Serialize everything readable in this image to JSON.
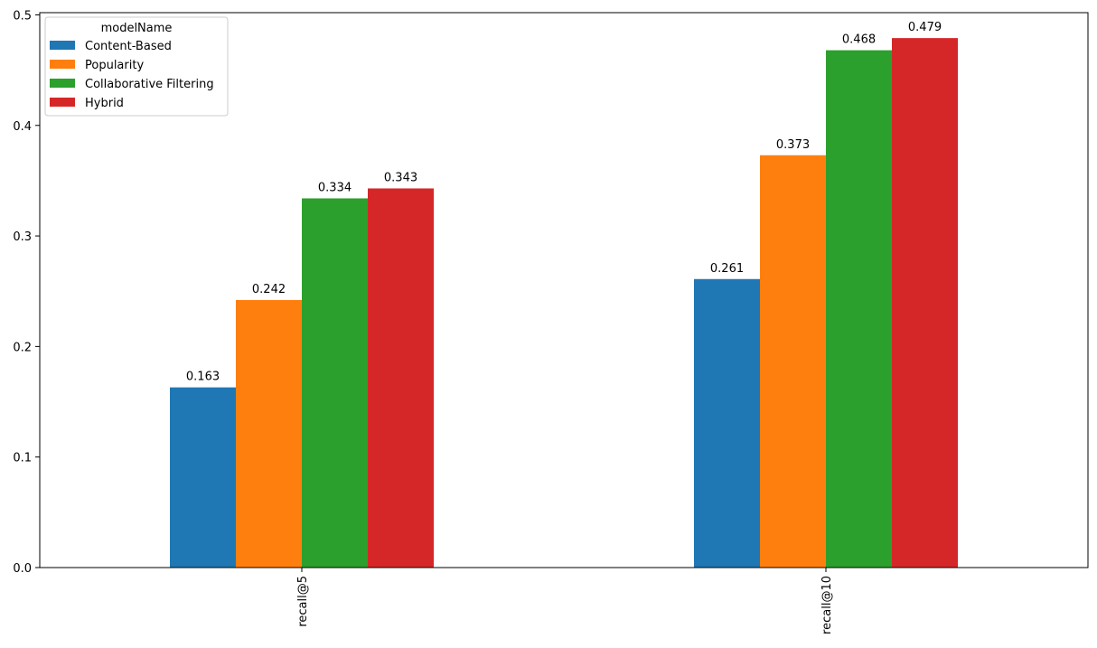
{
  "chart_data": {
    "type": "bar",
    "categories": [
      "recall@5",
      "recall@10"
    ],
    "series": [
      {
        "name": "Content-Based",
        "color": "#1f77b4",
        "values": [
          0.163,
          0.261
        ],
        "labels": [
          "0.163",
          "0.261"
        ]
      },
      {
        "name": "Popularity",
        "color": "#ff7f0e",
        "values": [
          0.242,
          0.373
        ],
        "labels": [
          "0.242",
          "0.373"
        ]
      },
      {
        "name": "Collaborative Filtering",
        "color": "#2ca02c",
        "values": [
          0.334,
          0.468
        ],
        "labels": [
          "0.334",
          "0.468"
        ]
      },
      {
        "name": "Hybrid",
        "color": "#d62728",
        "values": [
          0.343,
          0.479
        ],
        "labels": [
          "0.343",
          "0.479"
        ]
      }
    ],
    "ylim": [
      0,
      0.502
    ],
    "yticks": [
      0.0,
      0.1,
      0.2,
      0.3,
      0.4,
      0.5
    ],
    "ytick_labels": [
      "0.0",
      "0.1",
      "0.2",
      "0.3",
      "0.4",
      "0.5"
    ],
    "legend": {
      "title": "modelName",
      "position": "top-left"
    },
    "grid": false
  }
}
